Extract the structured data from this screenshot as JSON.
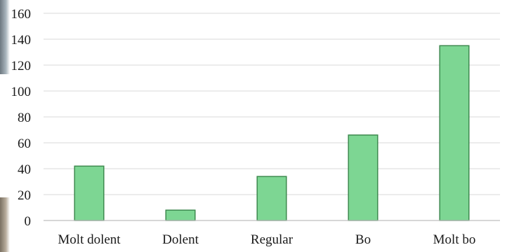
{
  "chart_data": {
    "type": "bar",
    "categories": [
      "Molt dolent",
      "Dolent",
      "Regular",
      "Bo",
      "Molt bo"
    ],
    "values": [
      42,
      8,
      34,
      66,
      135
    ],
    "ylim": [
      0,
      160
    ],
    "yticks": [
      0,
      20,
      40,
      60,
      80,
      100,
      120,
      140,
      160
    ],
    "grid": true,
    "legend": "none",
    "colors": {
      "bar_fill": "#7dd693",
      "bar_stroke": "#3e8a4f",
      "grid": "#d9d9d9",
      "axis": "#bfbfbf"
    }
  }
}
